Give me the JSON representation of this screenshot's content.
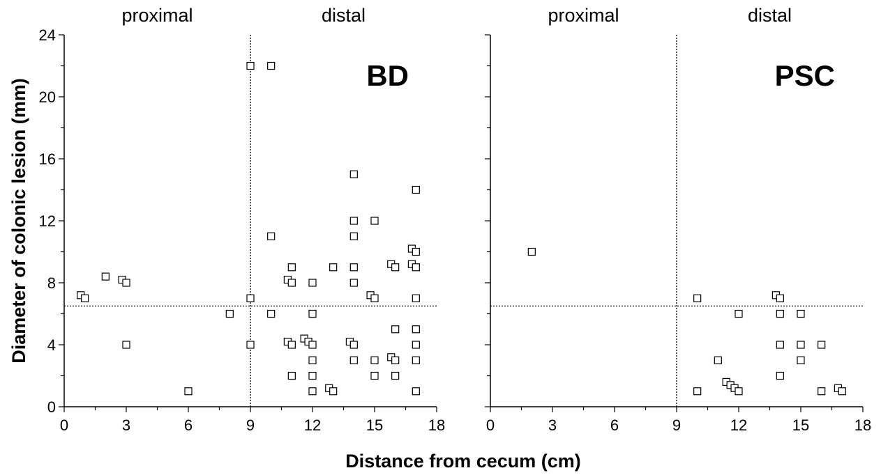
{
  "chart_data": [
    {
      "type": "scatter",
      "panel_label": "BD",
      "region_labels": [
        "proximal",
        "distal"
      ],
      "xlim": [
        0,
        18
      ],
      "ylim": [
        0,
        24
      ],
      "xticks": [
        "0",
        "3",
        "6",
        "9",
        "12",
        "15",
        "18"
      ],
      "yticks": [
        "0",
        "4",
        "8",
        "12",
        "16",
        "20",
        "24"
      ],
      "vline_x": 9,
      "hline_y": 6.5,
      "marker": "open-square",
      "grid": false,
      "points": [
        [
          0.8,
          7.2
        ],
        [
          1.0,
          7.0
        ],
        [
          2.0,
          8.4
        ],
        [
          2.8,
          8.2
        ],
        [
          3.0,
          8.0
        ],
        [
          3.0,
          4.0
        ],
        [
          6.0,
          1.0
        ],
        [
          8.0,
          6.0
        ],
        [
          9.0,
          22.0
        ],
        [
          9.0,
          7.0
        ],
        [
          9.0,
          4.0
        ],
        [
          10.0,
          22.0
        ],
        [
          10.0,
          11.0
        ],
        [
          10.0,
          6.0
        ],
        [
          10.8,
          8.2
        ],
        [
          11.0,
          9.0
        ],
        [
          11.0,
          8.0
        ],
        [
          10.8,
          4.2
        ],
        [
          11.0,
          4.0
        ],
        [
          11.0,
          2.0
        ],
        [
          11.6,
          4.4
        ],
        [
          11.8,
          4.2
        ],
        [
          12.0,
          8.0
        ],
        [
          12.0,
          6.0
        ],
        [
          12.0,
          4.0
        ],
        [
          12.0,
          3.0
        ],
        [
          12.0,
          2.0
        ],
        [
          12.0,
          1.0
        ],
        [
          12.8,
          1.2
        ],
        [
          13.0,
          1.0
        ],
        [
          13.0,
          9.0
        ],
        [
          13.8,
          4.2
        ],
        [
          14.0,
          15.0
        ],
        [
          14.0,
          12.0
        ],
        [
          14.0,
          11.0
        ],
        [
          14.0,
          9.0
        ],
        [
          14.0,
          8.0
        ],
        [
          14.0,
          4.0
        ],
        [
          14.0,
          3.0
        ],
        [
          14.8,
          7.2
        ],
        [
          15.0,
          12.0
        ],
        [
          15.0,
          7.0
        ],
        [
          15.0,
          3.0
        ],
        [
          15.0,
          2.0
        ],
        [
          15.8,
          9.2
        ],
        [
          16.0,
          9.0
        ],
        [
          16.0,
          5.0
        ],
        [
          15.8,
          3.2
        ],
        [
          16.0,
          3.0
        ],
        [
          16.0,
          2.0
        ],
        [
          16.8,
          10.2
        ],
        [
          17.0,
          10.0
        ],
        [
          16.8,
          9.2
        ],
        [
          17.0,
          9.0
        ],
        [
          17.0,
          14.0
        ],
        [
          17.0,
          7.0
        ],
        [
          17.0,
          5.0
        ],
        [
          17.0,
          4.0
        ],
        [
          17.0,
          3.0
        ],
        [
          17.0,
          1.0
        ]
      ]
    },
    {
      "type": "scatter",
      "panel_label": "PSC",
      "region_labels": [
        "proximal",
        "distal"
      ],
      "xlim": [
        0,
        18
      ],
      "ylim": [
        0,
        24
      ],
      "xticks": [
        "0",
        "3",
        "6",
        "9",
        "12",
        "15",
        "18"
      ],
      "vline_x": 9,
      "hline_y": 6.5,
      "marker": "open-square",
      "grid": false,
      "points": [
        [
          2.0,
          10.0
        ],
        [
          10.0,
          7.0
        ],
        [
          10.0,
          1.0
        ],
        [
          11.0,
          3.0
        ],
        [
          11.4,
          1.6
        ],
        [
          11.6,
          1.4
        ],
        [
          11.8,
          1.2
        ],
        [
          12.0,
          1.0
        ],
        [
          12.0,
          6.0
        ],
        [
          13.8,
          7.2
        ],
        [
          14.0,
          7.0
        ],
        [
          14.0,
          6.0
        ],
        [
          14.0,
          4.0
        ],
        [
          14.0,
          2.0
        ],
        [
          15.0,
          6.0
        ],
        [
          15.0,
          4.0
        ],
        [
          15.0,
          3.0
        ],
        [
          16.0,
          4.0
        ],
        [
          16.0,
          1.0
        ],
        [
          16.8,
          1.2
        ],
        [
          17.0,
          1.0
        ]
      ]
    }
  ],
  "axes": {
    "ylabel": "Diameter of colonic lesion (mm)",
    "xlabel": "Distance from cecum (cm)"
  }
}
